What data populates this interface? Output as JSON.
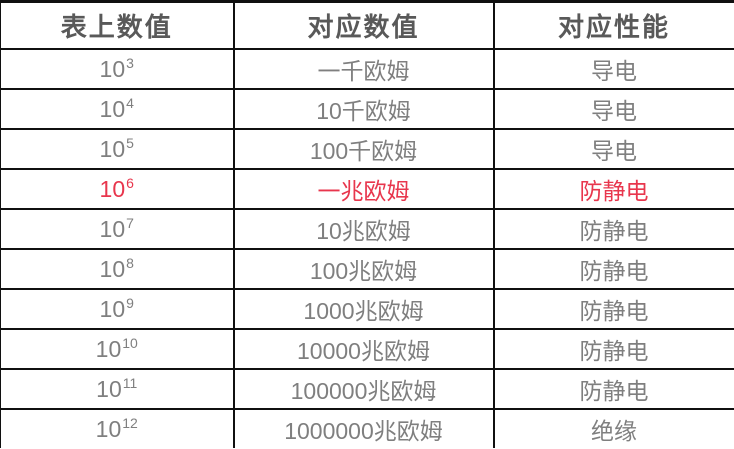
{
  "table": {
    "headers": [
      "表上数值",
      "对应数值",
      "对应性能"
    ],
    "rows": [
      {
        "meter_base": "10",
        "meter_exp": "3",
        "value": "一千欧姆",
        "performance": "导电",
        "highlight": false
      },
      {
        "meter_base": "10",
        "meter_exp": "4",
        "value": "10千欧姆",
        "performance": "导电",
        "highlight": false
      },
      {
        "meter_base": "10",
        "meter_exp": "5",
        "value": "100千欧姆",
        "performance": "导电",
        "highlight": false
      },
      {
        "meter_base": "10",
        "meter_exp": "6",
        "value": "一兆欧姆",
        "performance": "防静电",
        "highlight": true
      },
      {
        "meter_base": "10",
        "meter_exp": "7",
        "value": "10兆欧姆",
        "performance": "防静电",
        "highlight": false
      },
      {
        "meter_base": "10",
        "meter_exp": "8",
        "value": "100兆欧姆",
        "performance": "防静电",
        "highlight": false
      },
      {
        "meter_base": "10",
        "meter_exp": "9",
        "value": "1000兆欧姆",
        "performance": "防静电",
        "highlight": false
      },
      {
        "meter_base": "10",
        "meter_exp": "10",
        "value": "10000兆欧姆",
        "performance": "防静电",
        "highlight": false
      },
      {
        "meter_base": "10",
        "meter_exp": "11",
        "value": "100000兆欧姆",
        "performance": "防静电",
        "highlight": false
      },
      {
        "meter_base": "10",
        "meter_exp": "12",
        "value": "1000000兆欧姆",
        "performance": "绝缘",
        "highlight": false
      }
    ],
    "colors": {
      "border": "#101010",
      "header_text": "#595959",
      "body_text": "#7f7f7f",
      "highlight_text": "#e8364d"
    }
  }
}
